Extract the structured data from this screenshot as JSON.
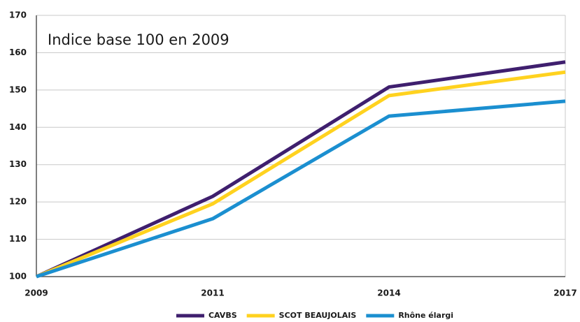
{
  "chart_data": {
    "type": "line",
    "annotation": "Indice base 100 en 2009",
    "categories": [
      "2009",
      "2011",
      "2014",
      "2017"
    ],
    "series": [
      {
        "name": "CAVBS",
        "color": "#3f1f6e",
        "values": [
          100,
          121.5,
          150.8,
          157.5
        ]
      },
      {
        "name": "SCOT BEAUJOLAIS",
        "color": "#ffd21f",
        "values": [
          100,
          119.5,
          148.5,
          154.8
        ]
      },
      {
        "name": "Rhône élargi",
        "color": "#1b8fd0",
        "values": [
          100,
          115.5,
          143,
          147
        ]
      }
    ],
    "ylim": [
      100,
      170
    ],
    "yticks": [
      100,
      110,
      120,
      130,
      140,
      150,
      160,
      170
    ],
    "grid": true,
    "legend": "bottom"
  }
}
